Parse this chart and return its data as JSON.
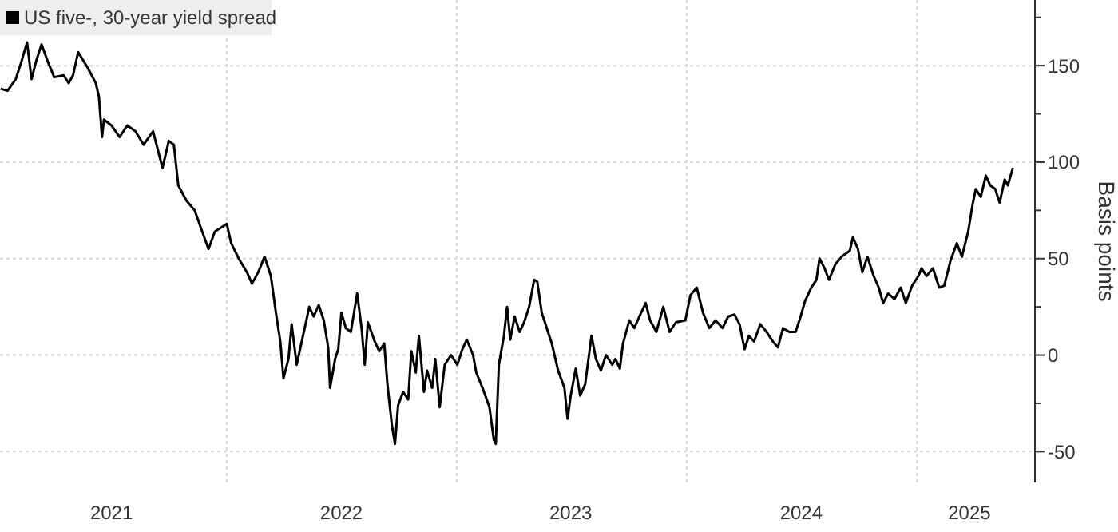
{
  "chart_data": {
    "type": "line",
    "ylabel": "Basis points",
    "legend": "top left",
    "grid": true,
    "line_style": "solid",
    "xlim": [
      "2021-01-06",
      "2025-07-07"
    ],
    "ylim": [
      -66,
      184
    ],
    "xticks": [
      {
        "value": "2021-07-02",
        "label": "2021"
      },
      {
        "value": "2022-01-01",
        "label": null
      },
      {
        "value": "2022-07-02",
        "label": "2022"
      },
      {
        "value": "2023-01-01",
        "label": null
      },
      {
        "value": "2023-07-01",
        "label": "2023"
      },
      {
        "value": "2024-01-01",
        "label": null
      },
      {
        "value": "2024-07-01",
        "label": "2024"
      },
      {
        "value": "2025-01-01",
        "label": null
      },
      {
        "value": "2025-03-25",
        "label": "2025"
      }
    ],
    "yticks": [
      -50,
      {
        "value": -25,
        "label": null
      },
      0,
      {
        "value": 25,
        "label": null
      },
      50,
      {
        "value": 75,
        "label": null
      },
      100,
      {
        "value": 125,
        "label": null
      },
      150,
      {
        "value": 175,
        "label": null
      }
    ],
    "x": [
      "2021-01-07",
      "2021-01-18",
      "2021-01-31",
      "2021-02-08",
      "2021-02-18",
      "2021-02-25",
      "2021-03-05",
      "2021-03-13",
      "2021-03-23",
      "2021-04-02",
      "2021-04-17",
      "2021-04-25",
      "2021-05-02",
      "2021-05-10",
      "2021-05-25",
      "2021-06-07",
      "2021-06-12",
      "2021-06-17",
      "2021-06-20",
      "2021-07-02",
      "2021-07-15",
      "2021-07-27",
      "2021-08-09",
      "2021-08-22",
      "2021-09-06",
      "2021-09-21",
      "2021-10-01",
      "2021-10-09",
      "2021-10-16",
      "2021-10-29",
      "2021-11-11",
      "2021-11-23",
      "2021-12-03",
      "2021-12-13",
      "2022-01-01",
      "2022-01-08",
      "2022-01-20",
      "2022-02-02",
      "2022-02-10",
      "2022-02-20",
      "2022-03-02",
      "2022-03-12",
      "2022-03-20",
      "2022-03-27",
      "2022-04-01",
      "2022-04-09",
      "2022-04-14",
      "2022-04-22",
      "2022-05-02",
      "2022-05-12",
      "2022-05-19",
      "2022-05-27",
      "2022-06-04",
      "2022-06-11",
      "2022-06-14",
      "2022-06-22",
      "2022-06-27",
      "2022-07-02",
      "2022-07-09",
      "2022-07-17",
      "2022-07-27",
      "2022-08-03",
      "2022-08-08",
      "2022-08-13",
      "2022-08-24",
      "2022-08-31",
      "2022-09-08",
      "2022-09-13",
      "2022-09-20",
      "2022-09-25",
      "2022-09-30",
      "2022-10-08",
      "2022-10-16",
      "2022-10-21",
      "2022-10-28",
      "2022-11-02",
      "2022-11-10",
      "2022-11-15",
      "2022-11-23",
      "2022-11-28",
      "2022-12-05",
      "2022-12-13",
      "2022-12-23",
      "2023-01-02",
      "2023-01-10",
      "2023-01-17",
      "2023-01-27",
      "2023-02-01",
      "2023-02-11",
      "2023-02-22",
      "2023-03-01",
      "2023-03-04",
      "2023-03-09",
      "2023-03-17",
      "2023-03-22",
      "2023-03-27",
      "2023-04-03",
      "2023-04-11",
      "2023-04-18",
      "2023-04-26",
      "2023-05-04",
      "2023-05-09",
      "2023-05-16",
      "2023-05-24",
      "2023-06-01",
      "2023-06-11",
      "2023-06-21",
      "2023-06-26",
      "2023-07-01",
      "2023-07-09",
      "2023-07-16",
      "2023-07-24",
      "2023-08-03",
      "2023-08-10",
      "2023-08-18",
      "2023-08-26",
      "2023-09-05",
      "2023-09-10",
      "2023-09-17",
      "2023-09-22",
      "2023-10-02",
      "2023-10-10",
      "2023-10-18",
      "2023-10-28",
      "2023-11-04",
      "2023-11-14",
      "2023-11-25",
      "2023-12-05",
      "2023-12-15",
      "2023-12-30",
      "2024-01-07",
      "2024-01-17",
      "2024-01-27",
      "2024-02-06",
      "2024-02-16",
      "2024-02-27",
      "2024-03-07",
      "2024-03-17",
      "2024-03-25",
      "2024-04-02",
      "2024-04-09",
      "2024-04-17",
      "2024-04-27",
      "2024-05-07",
      "2024-05-17",
      "2024-05-25",
      "2024-06-02",
      "2024-06-12",
      "2024-06-22",
      "2024-06-30",
      "2024-07-07",
      "2024-07-17",
      "2024-07-25",
      "2024-07-30",
      "2024-08-07",
      "2024-08-14",
      "2024-08-24",
      "2024-09-03",
      "2024-09-16",
      "2024-09-21",
      "2024-09-29",
      "2024-10-06",
      "2024-10-14",
      "2024-10-24",
      "2024-11-01",
      "2024-11-08",
      "2024-11-16",
      "2024-11-26",
      "2024-12-06",
      "2024-12-14",
      "2024-12-24",
      "2025-01-03",
      "2025-01-08",
      "2025-01-16",
      "2025-01-26",
      "2025-02-05",
      "2025-02-13",
      "2025-02-23",
      "2025-03-05",
      "2025-03-13",
      "2025-03-23",
      "2025-03-30",
      "2025-04-04",
      "2025-04-12",
      "2025-04-20",
      "2025-04-27",
      "2025-05-05",
      "2025-05-12",
      "2025-05-20",
      "2025-05-25",
      "2025-06-02"
    ],
    "series": [
      {
        "name": "US five-, 30-year yield spread",
        "color": "#000000",
        "values": [
          138,
          137,
          143,
          151,
          162,
          143,
          153,
          161,
          152,
          144,
          145,
          141,
          145,
          157,
          149,
          141,
          134,
          113,
          122,
          119,
          113,
          119,
          116,
          109,
          116,
          97,
          111,
          109,
          88,
          80,
          75,
          64,
          55,
          64,
          68,
          58,
          50,
          43,
          37,
          43,
          51,
          41,
          22,
          7,
          -12,
          -2,
          16,
          -5,
          10,
          25,
          20,
          26,
          18,
          4,
          -17,
          -2,
          3,
          22,
          14,
          12,
          32,
          14,
          -5,
          17,
          7,
          2,
          6,
          -15,
          -36,
          -46,
          -26,
          -19,
          -23,
          2,
          -9,
          10,
          -19,
          -8,
          -17,
          -2,
          -27,
          -5,
          0,
          -5,
          3,
          8,
          0,
          -9,
          -17,
          -27,
          -44,
          -46,
          -5,
          10,
          25,
          8,
          20,
          12,
          17,
          25,
          39,
          38,
          22,
          14,
          6,
          -8,
          -17,
          -33,
          -21,
          -7,
          -21,
          -15,
          10,
          -2,
          -8,
          0,
          -5,
          -2,
          -7,
          6,
          18,
          14,
          20,
          27,
          18,
          12,
          25,
          12,
          17,
          18,
          31,
          35,
          22,
          14,
          18,
          14,
          20,
          21,
          16,
          3,
          10,
          7,
          16,
          12,
          7,
          4,
          14,
          12,
          12,
          20,
          28,
          35,
          39,
          50,
          45,
          39,
          47,
          51,
          54,
          61,
          55,
          43,
          51,
          41,
          35,
          27,
          32,
          29,
          35,
          27,
          36,
          41,
          45,
          41,
          45,
          35,
          36,
          49,
          58,
          51,
          64,
          78,
          86,
          82,
          93,
          88,
          86,
          79,
          91,
          88,
          97
        ]
      }
    ]
  }
}
